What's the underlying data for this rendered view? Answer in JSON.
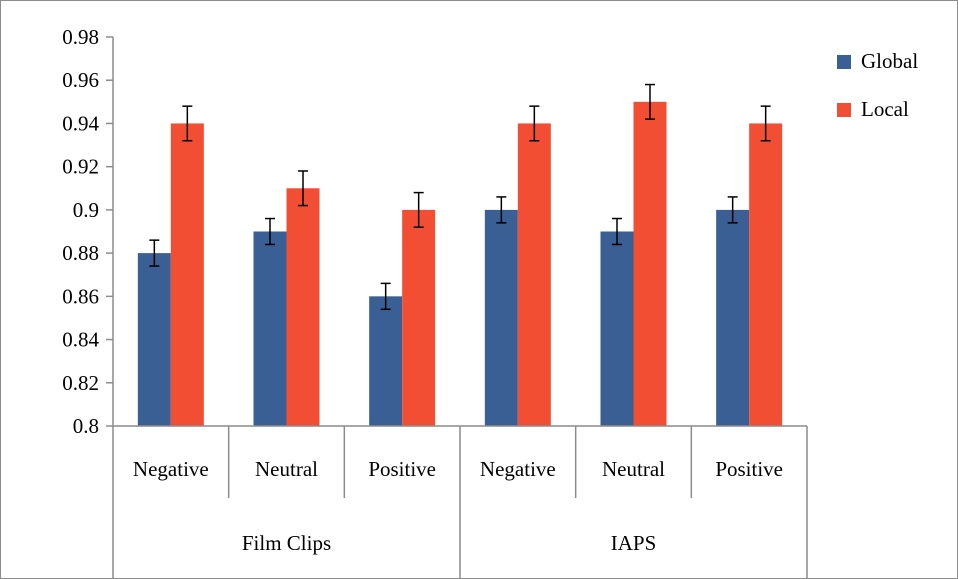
{
  "chart_data": {
    "type": "bar",
    "categories": [
      "Negative",
      "Neutral",
      "Positive",
      "Negative",
      "Neutral",
      "Positive"
    ],
    "groups": [
      {
        "label": "Film Clips",
        "categories": [
          "Negative",
          "Neutral",
          "Positive"
        ]
      },
      {
        "label": "IAPS",
        "categories": [
          "Negative",
          "Neutral",
          "Positive"
        ]
      }
    ],
    "series": [
      {
        "name": "Global",
        "color": "#3a5f94",
        "values": [
          0.88,
          0.89,
          0.86,
          0.9,
          0.89,
          0.9
        ],
        "errors": [
          0.006,
          0.006,
          0.006,
          0.006,
          0.006,
          0.006
        ]
      },
      {
        "name": "Local",
        "color": "#f24e33",
        "values": [
          0.94,
          0.91,
          0.9,
          0.94,
          0.95,
          0.94
        ],
        "errors": [
          0.008,
          0.008,
          0.008,
          0.008,
          0.008,
          0.008
        ]
      }
    ],
    "yticks": [
      "0.8",
      "0.82",
      "0.84",
      "0.86",
      "0.88",
      "0.9",
      "0.92",
      "0.94",
      "0.96",
      "0.98"
    ],
    "ylim": [
      0.8,
      0.98
    ],
    "title": "",
    "xlabel": "",
    "ylabel": "",
    "legend_position": "right",
    "grid": false
  }
}
